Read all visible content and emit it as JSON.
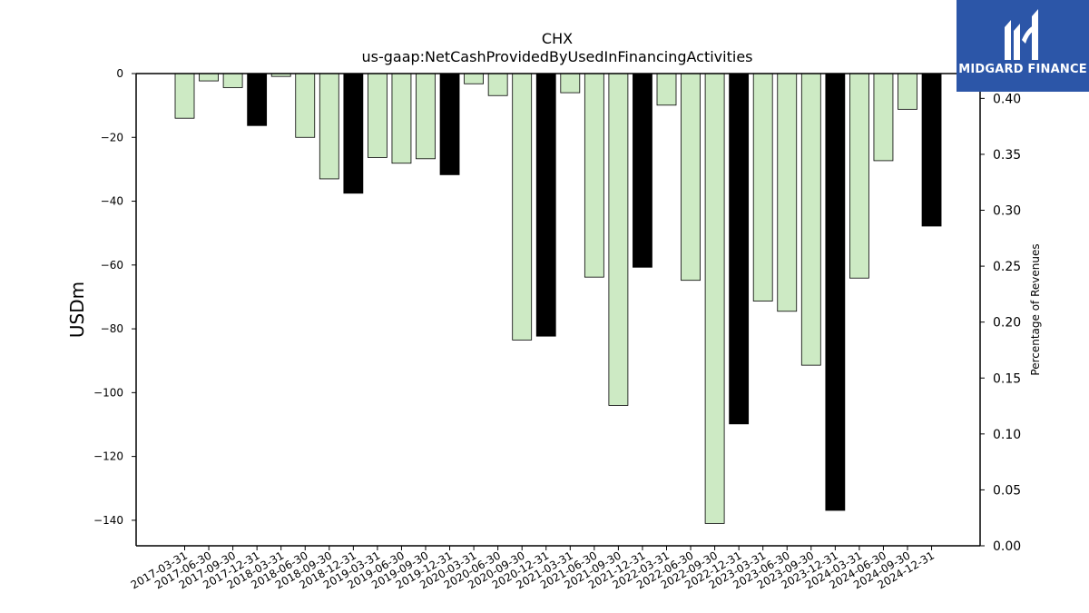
{
  "chart_data": {
    "type": "bar",
    "title": "CHX",
    "subtitle": "us-gaap:NetCashProvidedByUsedInFinancingActivities",
    "ylabel": "USDm",
    "ylabel_right": "Percentage of Revenues",
    "ylim": [
      -148,
      0
    ],
    "y_ticks": [
      0,
      -20,
      -40,
      -60,
      -80,
      -100,
      -120,
      -140
    ],
    "y2lim": [
      0,
      0.4222
    ],
    "y2_ticks": [
      "0.00",
      "0.05",
      "0.10",
      "0.15",
      "0.20",
      "0.25",
      "0.30",
      "0.35",
      "0.40"
    ],
    "grid": false,
    "legend": "none",
    "categories": [
      "2017-03-31",
      "2017-06-30",
      "2017-09-30",
      "2017-12-31",
      "2018-03-31",
      "2018-06-30",
      "2018-09-30",
      "2018-12-31",
      "2019-03-31",
      "2019-06-30",
      "2019-09-30",
      "2019-12-31",
      "2020-03-31",
      "2020-06-30",
      "2020-09-30",
      "2020-12-31",
      "2021-03-31",
      "2021-06-30",
      "2021-09-30",
      "2021-12-31",
      "2022-03-31",
      "2022-06-30",
      "2022-09-30",
      "2022-12-31",
      "2023-03-31",
      "2023-06-30",
      "2023-09-30",
      "2023-12-31",
      "2024-03-31",
      "2024-06-30",
      "2024-09-30",
      "2024-12-31"
    ],
    "values": [
      -14,
      -2.3,
      -4.4,
      -16.3,
      -0.9,
      -20,
      -33,
      -37.5,
      -26.3,
      -28.1,
      -26.7,
      -31.7,
      -3.2,
      -6.9,
      -83.5,
      -82.3,
      -6,
      -63.8,
      -104,
      -60.7,
      -9.9,
      -64.8,
      -141,
      -109.8,
      -71.3,
      -74.5,
      -91.4,
      -136.9,
      -64.1,
      -27.3,
      -11.2,
      -47.8
    ],
    "bar_colors": [
      "#cdeac4",
      "#cdeac4",
      "#cdeac4",
      "#000000",
      "#cdeac4",
      "#cdeac4",
      "#cdeac4",
      "#000000",
      "#cdeac4",
      "#cdeac4",
      "#cdeac4",
      "#000000",
      "#cdeac4",
      "#cdeac4",
      "#cdeac4",
      "#000000",
      "#cdeac4",
      "#cdeac4",
      "#cdeac4",
      "#000000",
      "#cdeac4",
      "#cdeac4",
      "#cdeac4",
      "#000000",
      "#cdeac4",
      "#cdeac4",
      "#cdeac4",
      "#000000",
      "#cdeac4",
      "#cdeac4",
      "#cdeac4",
      "#000000"
    ],
    "colors": {
      "quarter": "#cdeac4",
      "year_end": "#000000",
      "bar_edge": "#000000"
    }
  },
  "logo": {
    "text": "MIDGARD FINANCE",
    "background": "#2c56a8"
  }
}
